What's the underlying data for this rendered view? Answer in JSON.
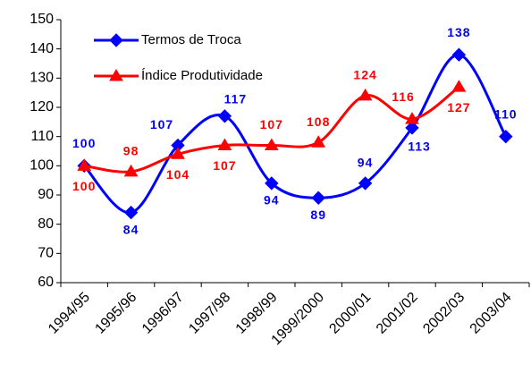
{
  "chart_data": {
    "type": "line",
    "categories": [
      "1994/95",
      "1995/96",
      "1996/97",
      "1997/98",
      "1998/99",
      "1999/2000",
      "2000/01",
      "2001/02",
      "2002/03",
      "2003/04"
    ],
    "series": [
      {
        "name": "Termos de Troca",
        "color": "#0000ff",
        "marker": "diamond",
        "values": [
          100,
          84,
          107,
          117,
          94,
          89,
          94,
          113,
          138,
          110
        ]
      },
      {
        "name": "Índice Produtividade",
        "color": "#ff0000",
        "marker": "triangle",
        "values": [
          100,
          98,
          104,
          107,
          107,
          108,
          124,
          116,
          127,
          null
        ]
      }
    ],
    "ylim": [
      60,
      150
    ],
    "yticks": [
      60,
      70,
      80,
      90,
      100,
      110,
      120,
      130,
      140,
      150
    ],
    "grid": false,
    "smooth": true,
    "legend": "top-left"
  }
}
